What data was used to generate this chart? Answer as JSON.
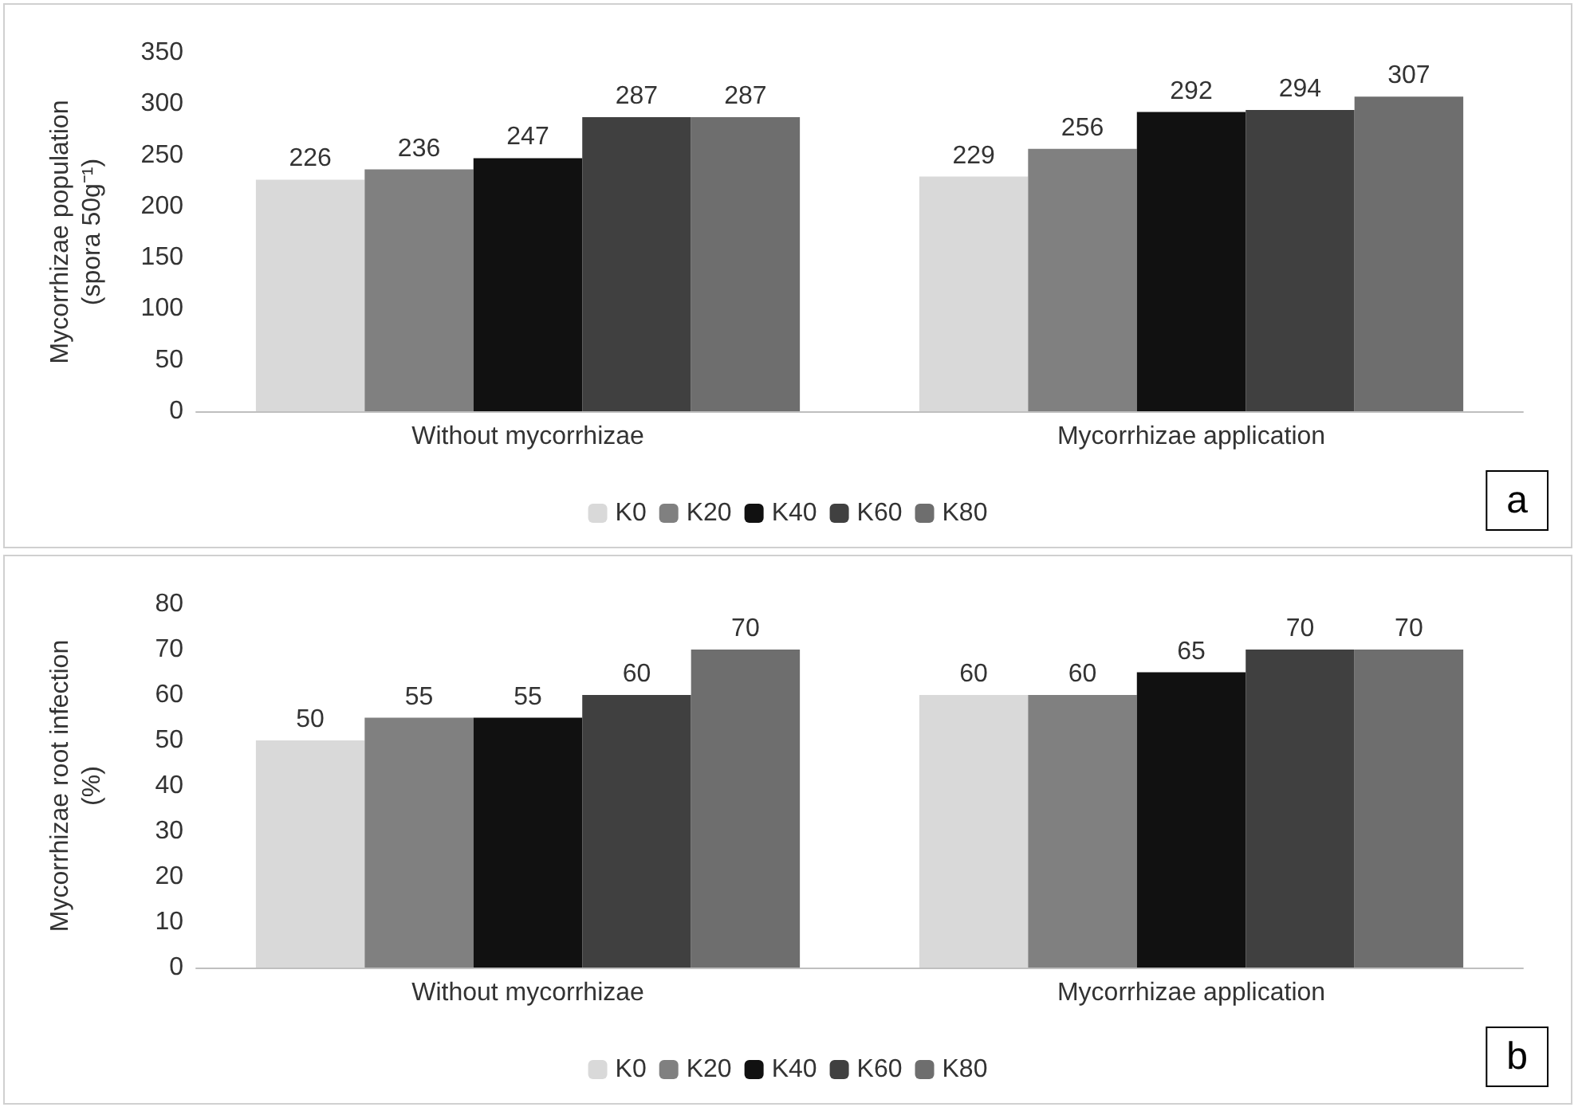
{
  "chart_data": [
    {
      "type": "bar",
      "categories": [
        "Without mycorrhizae",
        "Mycorrhizae application"
      ],
      "ylabel": "Mycorrhizae population\n(spora 50g⁻¹)",
      "ylim": [
        0,
        350
      ],
      "yticks": [
        0,
        50,
        100,
        150,
        200,
        250,
        300,
        350
      ],
      "grid": false,
      "legend": "bottom",
      "data_labels": true,
      "annotations": [
        "a"
      ],
      "series": [
        {
          "name": "K0",
          "color": "#d9d9d9",
          "values": [
            226,
            229
          ]
        },
        {
          "name": "K20",
          "color": "#808080",
          "values": [
            236,
            256
          ]
        },
        {
          "name": "K40",
          "color": "#111111",
          "values": [
            247,
            292
          ]
        },
        {
          "name": "K60",
          "color": "#404040",
          "values": [
            287,
            294
          ]
        },
        {
          "name": "K80",
          "color": "#6e6e6e",
          "values": [
            287,
            307
          ]
        }
      ]
    },
    {
      "type": "bar",
      "categories": [
        "Without mycorrhizae",
        "Mycorrhizae application"
      ],
      "ylabel": "Mycorrhizae root infection\n(%)",
      "ylim": [
        0,
        80
      ],
      "yticks": [
        0,
        10,
        20,
        30,
        40,
        50,
        60,
        70,
        80
      ],
      "grid": false,
      "legend": "bottom",
      "data_labels": true,
      "annotations": [
        "b"
      ],
      "series": [
        {
          "name": "K0",
          "color": "#d9d9d9",
          "values": [
            50,
            60
          ]
        },
        {
          "name": "K20",
          "color": "#808080",
          "values": [
            55,
            60
          ]
        },
        {
          "name": "K40",
          "color": "#111111",
          "values": [
            55,
            65
          ]
        },
        {
          "name": "K60",
          "color": "#404040",
          "values": [
            60,
            70
          ]
        },
        {
          "name": "K80",
          "color": "#6e6e6e",
          "values": [
            70,
            70
          ]
        }
      ]
    }
  ]
}
